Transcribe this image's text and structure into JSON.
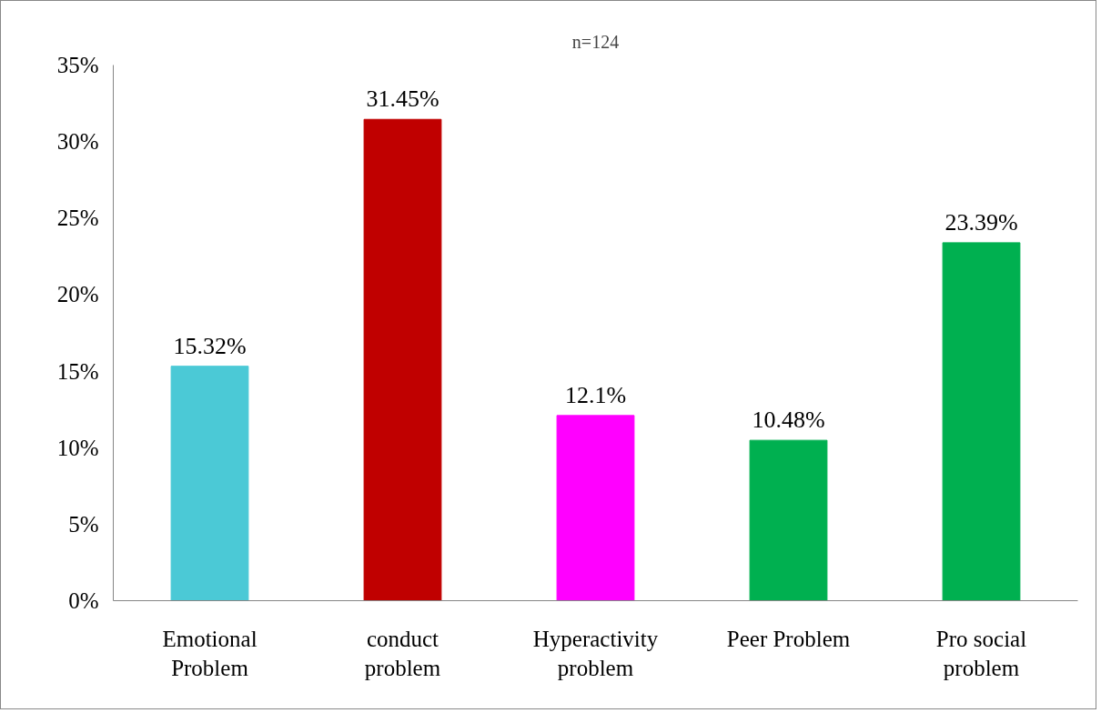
{
  "chart_data": {
    "type": "bar",
    "categories": [
      "Emotional\nProblem",
      "conduct\nproblem",
      "Hyperactivity\nproblem",
      "Peer Problem",
      "Pro social\nproblem"
    ],
    "values": [
      15.32,
      31.45,
      12.1,
      10.48,
      23.39
    ],
    "colors": [
      "#4bc9d6",
      "#c00000",
      "#ff00ff",
      "#00b050",
      "#00b050"
    ],
    "value_labels": [
      "15.32%",
      "31.45%",
      "12.1%",
      "10.48%",
      "23.39%"
    ],
    "ylim": [
      0,
      35
    ],
    "yticks": [
      {
        "value": 0,
        "label": "0%"
      },
      {
        "value": 5,
        "label": "5%"
      },
      {
        "value": 10,
        "label": "10%"
      },
      {
        "value": 15,
        "label": "15%"
      },
      {
        "value": 20,
        "label": "20%"
      },
      {
        "value": 25,
        "label": "25%"
      },
      {
        "value": 30,
        "label": "30%"
      },
      {
        "value": 35,
        "label": "35%"
      }
    ],
    "annotations": [
      "n=124"
    ],
    "grid": false
  }
}
